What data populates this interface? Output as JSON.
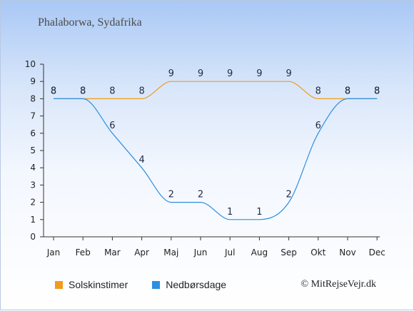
{
  "chart_data": {
    "type": "line",
    "title": "Phalaborwa, Sydafrika",
    "categories": [
      "Jan",
      "Feb",
      "Mar",
      "Apr",
      "Maj",
      "Jun",
      "Jul",
      "Aug",
      "Sep",
      "Okt",
      "Nov",
      "Dec"
    ],
    "series": [
      {
        "name": "Solskinstimer",
        "color": "#f29b1b",
        "values": [
          8,
          8,
          8,
          8,
          9,
          9,
          9,
          9,
          9,
          8,
          8,
          8
        ]
      },
      {
        "name": "Nedbørsdage",
        "color": "#2d8fe0",
        "values": [
          8,
          8,
          6,
          4,
          2,
          2,
          1,
          1,
          2,
          6,
          8,
          8
        ]
      }
    ],
    "ylim": [
      0,
      10
    ],
    "yticks": [
      0,
      1,
      2,
      3,
      4,
      5,
      6,
      7,
      8,
      9,
      10
    ],
    "grid": false,
    "legend": "bottom-left"
  },
  "copyright": "© MitRejseVejr.dk"
}
